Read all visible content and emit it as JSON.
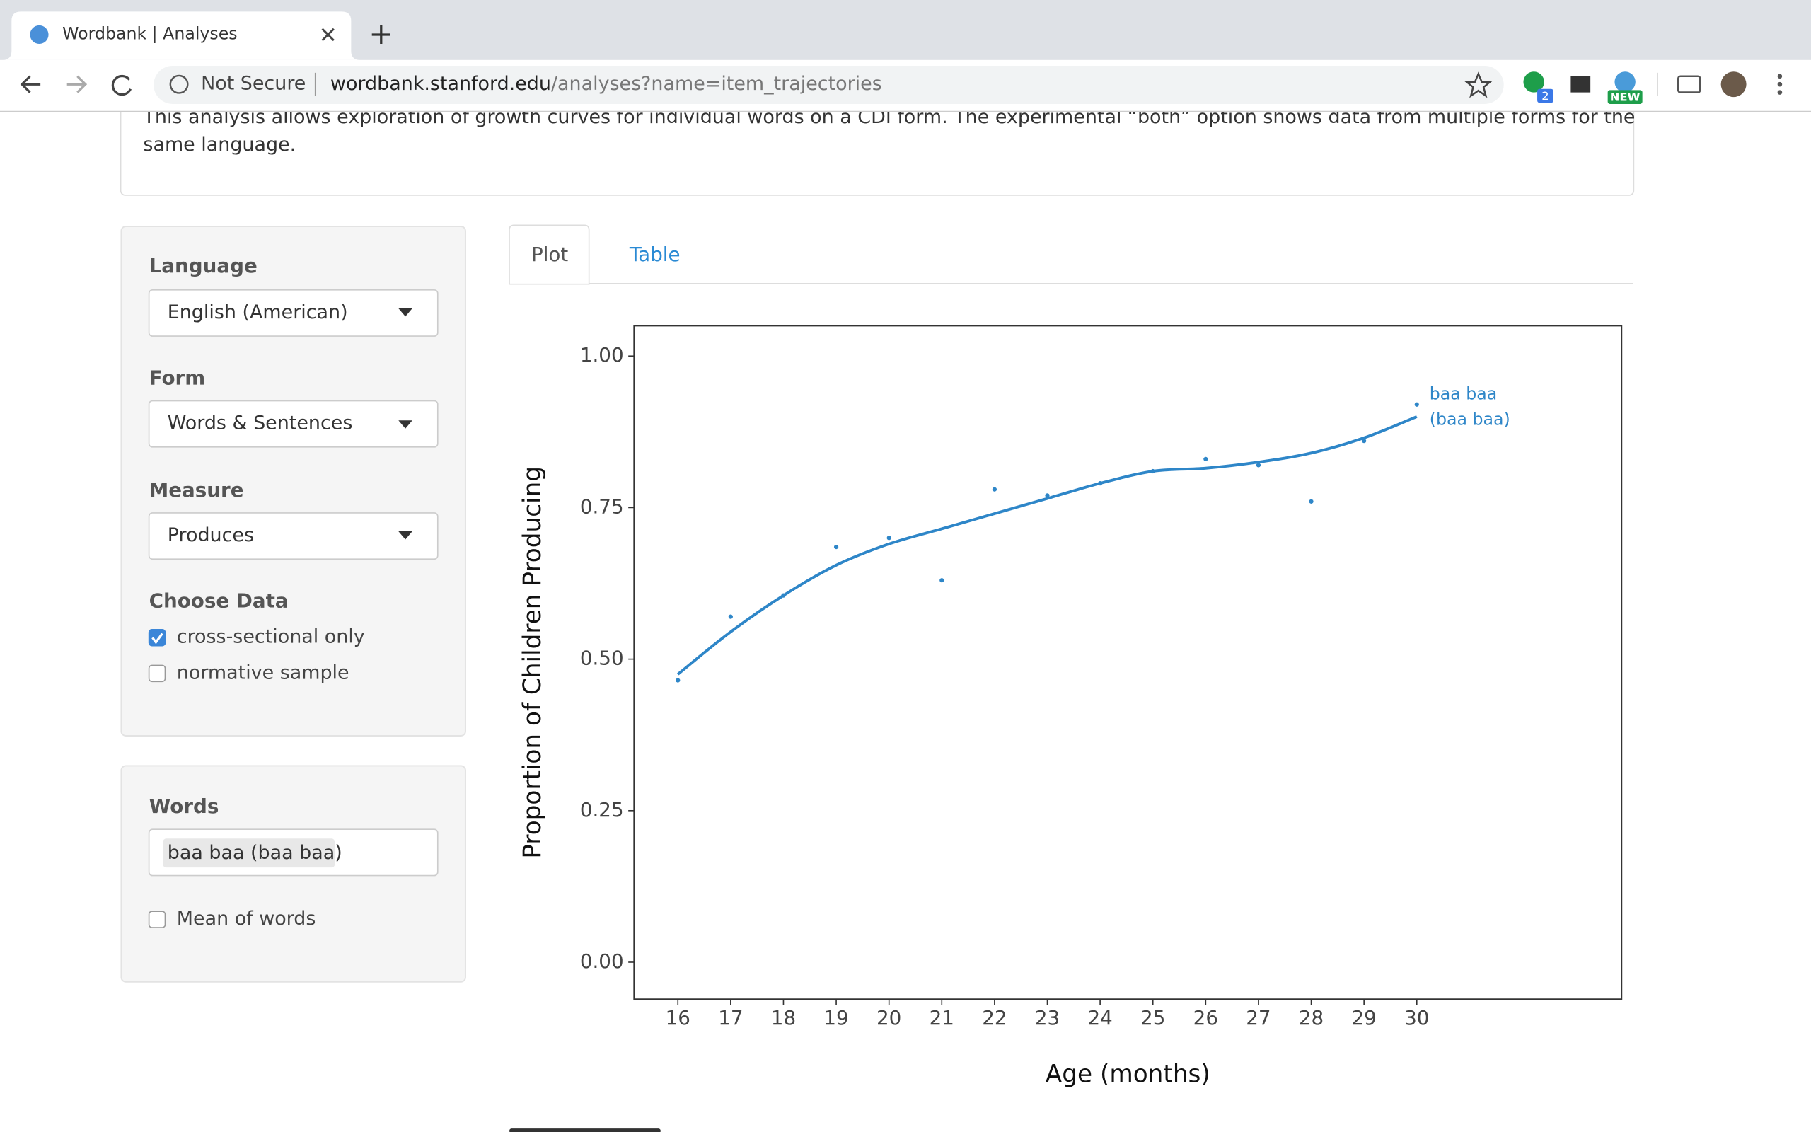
{
  "browser": {
    "tab_title": "Wordbank | Analyses",
    "security": "Not Secure",
    "url_host": "wordbank.stanford.edu",
    "url_path": "/analyses?name=item_trajectories",
    "extension_badge": "2",
    "extension_new": "NEW"
  },
  "description": {
    "lines": [
      "This analysis allows exploration of growth curves for individual words on a CDI form. The experimental “both” option shows data from multiple forms for the",
      "same language."
    ]
  },
  "sidebar": {
    "language": {
      "label": "Language",
      "value": "English (American)"
    },
    "form": {
      "label": "Form",
      "value": "Words & Sentences"
    },
    "measure": {
      "label": "Measure",
      "value": "Produces"
    },
    "choose_data": {
      "label": "Choose Data",
      "options": [
        {
          "label": "cross-sectional only",
          "checked": true
        },
        {
          "label": "normative sample",
          "checked": false
        }
      ]
    },
    "words": {
      "label": "Words",
      "selected": "baa baa (baa baa)"
    },
    "mean_of_words": {
      "label": "Mean of words",
      "checked": false
    }
  },
  "tabs": [
    {
      "label": "Plot",
      "active": true
    },
    {
      "label": "Table",
      "active": false
    }
  ],
  "chart_data": {
    "type": "scatter",
    "x_label": "Age (months)",
    "y_label": "Proportion of Children Producing",
    "x": [
      16,
      17,
      18,
      19,
      20,
      21,
      22,
      23,
      24,
      25,
      26,
      27,
      28,
      29,
      30
    ],
    "series": [
      {
        "label_lines": [
          "baa baa",
          "(baa baa)"
        ],
        "color": "#2e86c8",
        "values": [
          0.465,
          0.57,
          0.605,
          0.685,
          0.7,
          0.63,
          0.78,
          0.77,
          0.79,
          0.81,
          0.83,
          0.82,
          0.76,
          0.86,
          0.92
        ],
        "fit": [
          0.475,
          0.545,
          0.605,
          0.655,
          0.69,
          0.715,
          0.74,
          0.765,
          0.79,
          0.81,
          0.815,
          0.825,
          0.84,
          0.865,
          0.9
        ]
      }
    ],
    "xlim": [
      15.17,
      33.88
    ],
    "ylim": [
      -0.061,
      1.05
    ],
    "xticks": [
      16,
      17,
      18,
      19,
      20,
      21,
      22,
      23,
      24,
      25,
      26,
      27,
      28,
      29,
      30
    ],
    "yticks": [
      {
        "value": 0,
        "label": "0.00"
      },
      0.25,
      {
        "value": 0.5,
        "label": "0.50"
      },
      0.75,
      {
        "value": 1,
        "label": "1.00"
      }
    ],
    "grid": false
  }
}
